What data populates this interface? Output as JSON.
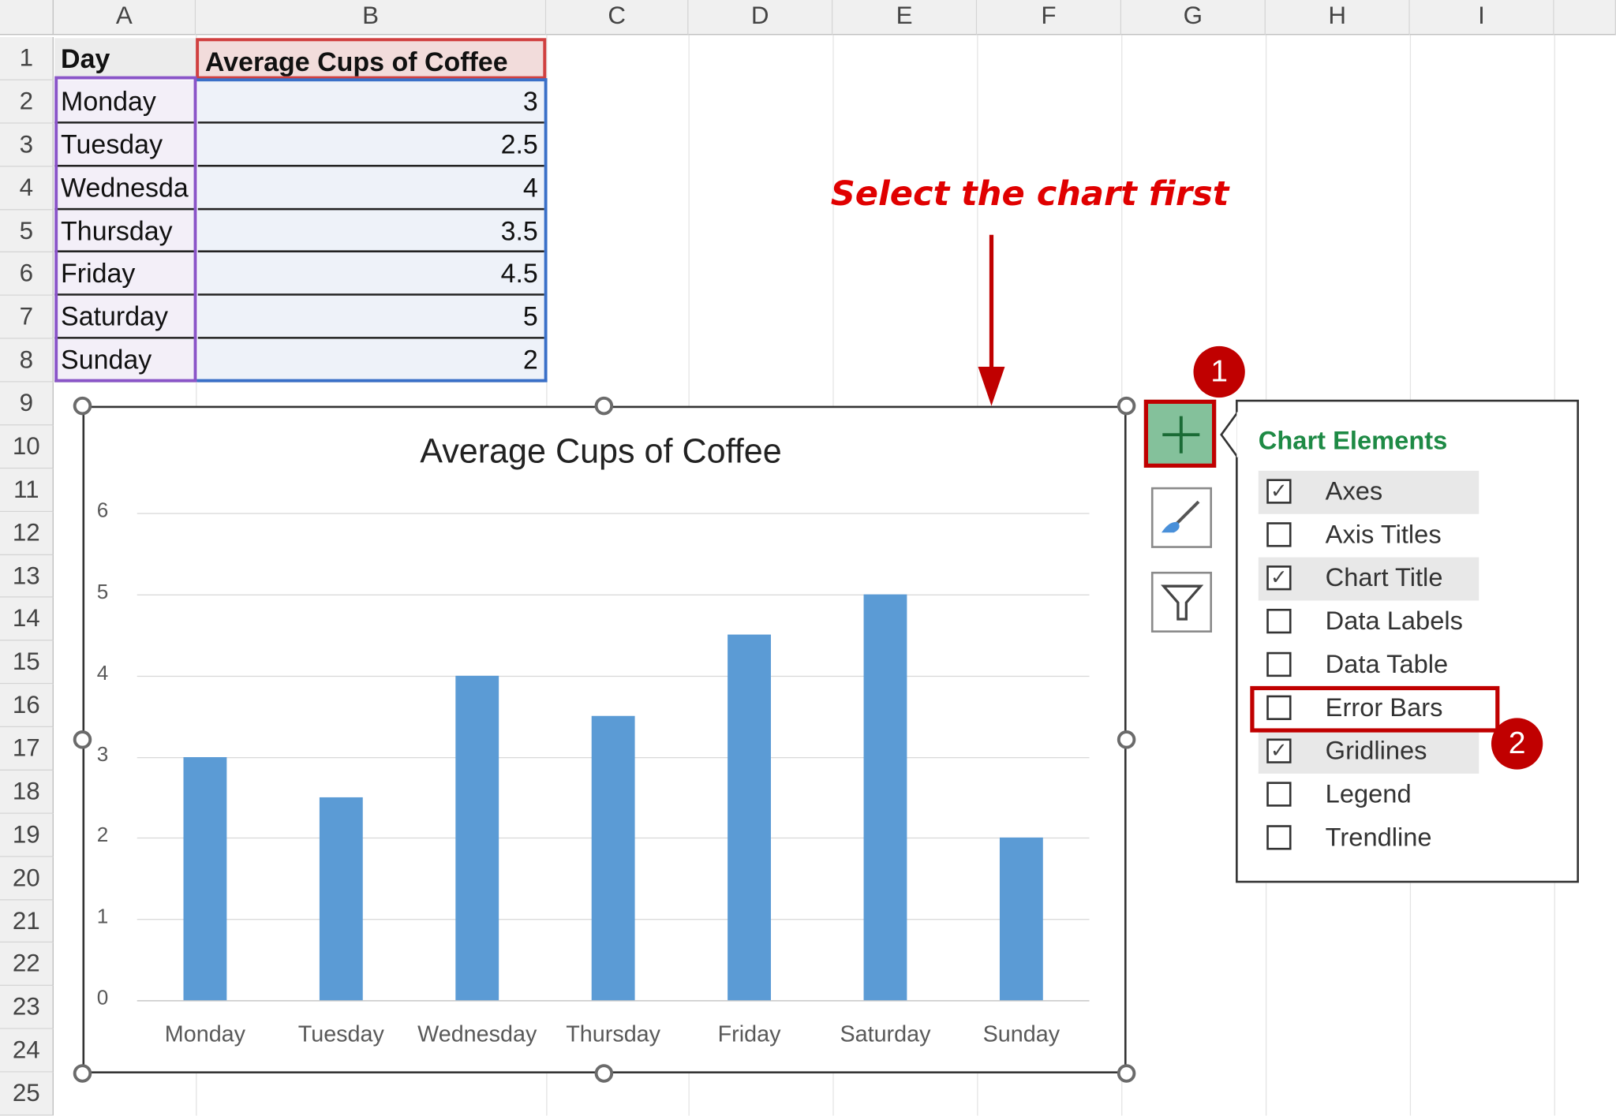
{
  "spreadsheet": {
    "columns": [
      "A",
      "B",
      "C",
      "D",
      "E",
      "F",
      "G",
      "H",
      "I"
    ],
    "rows": [
      "1",
      "2",
      "3",
      "4",
      "5",
      "6",
      "7",
      "8",
      "9",
      "10",
      "11",
      "12",
      "13",
      "14",
      "15",
      "16",
      "17",
      "18",
      "19",
      "20",
      "21",
      "22",
      "23",
      "24",
      "25"
    ],
    "table": {
      "headers": [
        "Day",
        "Average Cups of Coffee"
      ],
      "days": [
        "Monday",
        "Tuesday",
        "Wednesda",
        "Thursday",
        "Friday",
        "Saturday",
        "Sunday"
      ],
      "values": [
        "3",
        "2.5",
        "4",
        "3.5",
        "4.5",
        "5",
        "2"
      ]
    }
  },
  "annotation": {
    "text": "Select the chart first",
    "color": "#e00000"
  },
  "chart_data": {
    "type": "bar",
    "title": "Average Cups of Coffee",
    "categories": [
      "Monday",
      "Tuesday",
      "Wednesday",
      "Thursday",
      "Friday",
      "Saturday",
      "Sunday"
    ],
    "values": [
      3,
      2.5,
      4,
      3.5,
      4.5,
      5,
      2
    ],
    "yticks": [
      "0",
      "1",
      "2",
      "3",
      "4",
      "5",
      "6"
    ],
    "ylim": [
      0,
      6
    ],
    "grid": true,
    "legend": "none",
    "bar_color": "#5b9bd5"
  },
  "chart_elements_panel": {
    "title": "Chart Elements",
    "title_color": "#1e8a45",
    "items": [
      {
        "label": "Axes",
        "checked": true
      },
      {
        "label": "Axis Titles",
        "checked": false
      },
      {
        "label": "Chart Title",
        "checked": true
      },
      {
        "label": "Data Labels",
        "checked": false
      },
      {
        "label": "Data Table",
        "checked": false
      },
      {
        "label": "Error Bars",
        "checked": false
      },
      {
        "label": "Gridlines",
        "checked": true
      },
      {
        "label": "Legend",
        "checked": false
      },
      {
        "label": "Trendline",
        "checked": false
      }
    ]
  },
  "side_buttons": [
    "plus-icon",
    "brush-icon",
    "filter-icon"
  ],
  "badges": [
    "1",
    "2"
  ]
}
